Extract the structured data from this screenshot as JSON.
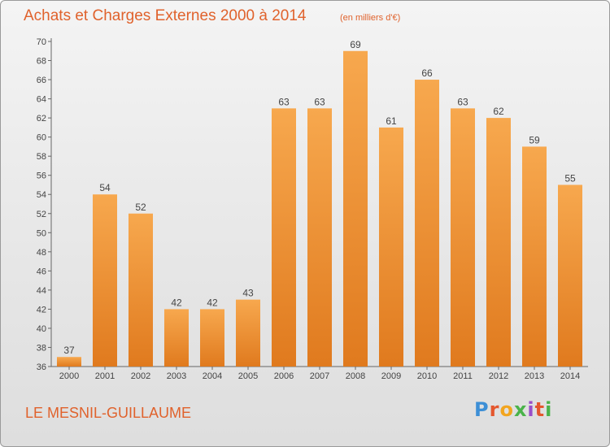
{
  "header": {
    "title": "Achats et Charges Externes 2000 à 2014",
    "subtitle": "(en milliers d'€)"
  },
  "footer": {
    "commune": "LE MESNIL-GUILLAUME",
    "logo_text": "Proxiti"
  },
  "colors": {
    "bar_light": "#f7a84e",
    "bar_dark": "#e07a1e",
    "accent_text": "#e0622c"
  },
  "chart_data": {
    "type": "bar",
    "title": "Achats et Charges Externes 2000 à 2014",
    "subtitle": "(en milliers d'€)",
    "xlabel": "",
    "ylabel": "",
    "categories": [
      "2000",
      "2001",
      "2002",
      "2003",
      "2004",
      "2005",
      "2006",
      "2007",
      "2008",
      "2009",
      "2010",
      "2011",
      "2012",
      "2013",
      "2014"
    ],
    "values": [
      37,
      54,
      52,
      42,
      42,
      43,
      63,
      63,
      69,
      61,
      66,
      63,
      62,
      59,
      55
    ],
    "data_labels": [
      "37",
      "54",
      "52",
      "42",
      "42",
      "43",
      "63",
      "63",
      "69",
      "61",
      "66",
      "63",
      "62",
      "59",
      "55"
    ],
    "ylim": [
      36,
      70
    ],
    "yticks": [
      36,
      38,
      40,
      42,
      44,
      46,
      48,
      50,
      52,
      54,
      56,
      58,
      60,
      62,
      64,
      66,
      68,
      70
    ],
    "grid": false,
    "legend": "none"
  }
}
